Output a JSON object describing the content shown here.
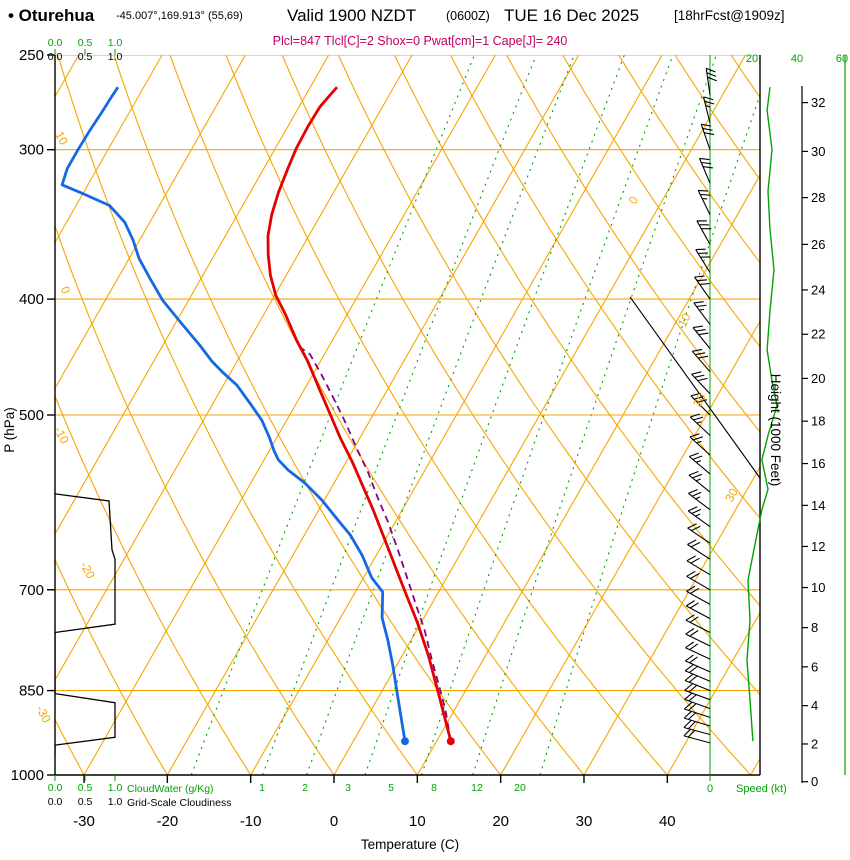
{
  "header": {
    "station_title": "• Oturehua",
    "coords": "-45.007°,169.913° (55,69)",
    "valid_time": "Valid 1900 NZDT",
    "valid_z": "(0600Z)",
    "valid_date": "TUE 16 Dec 2025",
    "forecast_ref": "[18hrFcst@1909z]",
    "indices": "Plcl=847 Tlcl[C]=2 Shox=0 Pwat[cm]=1 Cape[J]= 240"
  },
  "axes": {
    "pressure_title": "P (hPa)",
    "pressure_ticks": [
      "250",
      "300",
      "400",
      "500",
      "700",
      "850",
      "1000"
    ],
    "temperature_title": "Temperature (C)",
    "temperature_ticks": [
      "-30",
      "-20",
      "-10",
      "0",
      "10",
      "20",
      "30",
      "40"
    ],
    "height_title": "Height (1000 Feet)",
    "height_ticks": [
      "0",
      "2",
      "4",
      "6",
      "8",
      "10",
      "12",
      "14",
      "16",
      "18",
      "20",
      "22",
      "24",
      "26",
      "28",
      "30",
      "32"
    ],
    "speed_title": "Speed (kt)",
    "speed_zero_label": "0",
    "speed_top_ticks": [
      "20",
      "40",
      "60"
    ],
    "cloudwater_title": "CloudWater (g/Kg)",
    "cloudiness_title": "Grid-Scale Cloudiness",
    "cloud_scale_ticks": [
      "0.0",
      "0.5",
      "1.0"
    ],
    "dry_adiabat_labels": [
      "10",
      "0",
      "-10",
      "-20",
      "-30"
    ],
    "isotherm_labels": [
      "0",
      "10",
      "20",
      "30"
    ],
    "mixing_ratio_labels": [
      "1",
      "2",
      "3",
      "5",
      "8",
      "12",
      "20"
    ]
  },
  "colors": {
    "grid_orange": "#f7a600",
    "green": "#00a300",
    "temperature_red": "#e60000",
    "dewpoint_blue": "#1569e0",
    "parcel_purple": "#880088",
    "indices_magenta": "#c00060",
    "black": "#000000"
  },
  "chart_data": {
    "type": "line",
    "subtype": "skew-t log-p atmospheric sounding",
    "pressure_range_hpa": [
      1000,
      250
    ],
    "pressure_gridlines_hpa": [
      250,
      300,
      400,
      500,
      700,
      850,
      1000
    ],
    "isotherm_step_c": 10,
    "dry_adiabat_step_c": 10,
    "mixing_ratio_lines_gkg": [
      1,
      2,
      3,
      5,
      8,
      12,
      20
    ],
    "height_axis_kft_ticks": [
      0,
      2,
      4,
      6,
      8,
      10,
      12,
      14,
      16,
      18,
      20,
      22,
      24,
      26,
      28,
      30,
      32
    ],
    "speed_axis_kt": [
      0,
      60
    ],
    "series": {
      "temperature_c": [
        [
          937,
          11.7
        ],
        [
          891,
          9.1
        ],
        [
          849,
          6.6
        ],
        [
          794,
          3.1
        ],
        [
          745,
          -0.5
        ],
        [
          703,
          -4.0
        ],
        [
          671,
          -6.8
        ],
        [
          636,
          -10.0
        ],
        [
          600,
          -13.5
        ],
        [
          572,
          -16.5
        ],
        [
          547,
          -19.3
        ],
        [
          523,
          -22.3
        ],
        [
          500,
          -25.1
        ],
        [
          475,
          -28.3
        ],
        [
          451,
          -31.5
        ],
        [
          433,
          -34.3
        ],
        [
          412,
          -37.4
        ],
        [
          397,
          -39.9
        ],
        [
          382,
          -41.9
        ],
        [
          367,
          -43.6
        ],
        [
          354,
          -44.9
        ],
        [
          340,
          -45.9
        ],
        [
          326,
          -46.6
        ],
        [
          312,
          -47.1
        ],
        [
          299,
          -47.5
        ],
        [
          287,
          -47.6
        ],
        [
          276,
          -47.5
        ],
        [
          270,
          -47.1
        ],
        [
          266,
          -46.8
        ]
      ],
      "dewpoint_c": [
        [
          937,
          6.2
        ],
        [
          891,
          3.9
        ],
        [
          849,
          1.7
        ],
        [
          809,
          -0.5
        ],
        [
          771,
          -2.8
        ],
        [
          739,
          -5.0
        ],
        [
          703,
          -6.7
        ],
        [
          684,
          -9.0
        ],
        [
          655,
          -11.7
        ],
        [
          630,
          -14.5
        ],
        [
          610,
          -17.3
        ],
        [
          589,
          -20.3
        ],
        [
          570,
          -23.5
        ],
        [
          556,
          -26.4
        ],
        [
          545,
          -28.3
        ],
        [
          535,
          -29.5
        ],
        [
          522,
          -30.9
        ],
        [
          505,
          -33.0
        ],
        [
          488,
          -35.7
        ],
        [
          472,
          -38.4
        ],
        [
          460,
          -41.1
        ],
        [
          451,
          -43.0
        ],
        [
          437,
          -45.6
        ],
        [
          420,
          -49.1
        ],
        [
          401,
          -53.1
        ],
        [
          384,
          -56.2
        ],
        [
          370,
          -58.8
        ],
        [
          357,
          -60.8
        ],
        [
          345,
          -63.0
        ],
        [
          334,
          -66.0
        ],
        [
          327,
          -69.7
        ],
        [
          321,
          -73.1
        ],
        [
          311,
          -73.6
        ],
        [
          300,
          -73.6
        ],
        [
          289,
          -73.5
        ],
        [
          279,
          -73.3
        ],
        [
          271,
          -73.2
        ],
        [
          266,
          -73.1
        ]
      ],
      "parcel_path_c": [
        [
          937,
          11.7
        ],
        [
          882,
          8.9
        ],
        [
          847,
          6.8
        ],
        [
          802,
          3.9
        ],
        [
          756,
          0.9
        ],
        [
          721,
          -1.8
        ],
        [
          687,
          -4.5
        ],
        [
          648,
          -7.8
        ],
        [
          614,
          -10.9
        ],
        [
          586,
          -13.8
        ],
        [
          559,
          -16.6
        ],
        [
          533,
          -19.7
        ],
        [
          508,
          -22.7
        ],
        [
          484,
          -25.9
        ],
        [
          463,
          -28.9
        ],
        [
          445,
          -31.7
        ],
        [
          437,
          -33.9
        ]
      ],
      "wind_speed_kt": [
        [
          937,
          20.4
        ],
        [
          865,
          19.1
        ],
        [
          802,
          17.8
        ],
        [
          742,
          19.1
        ],
        [
          687,
          18.2
        ],
        [
          642,
          21.3
        ],
        [
          600,
          24.4
        ],
        [
          577,
          27.1
        ],
        [
          545,
          24.4
        ],
        [
          520,
          27.1
        ],
        [
          491,
          31.1
        ],
        [
          468,
          28.9
        ],
        [
          441,
          26.7
        ],
        [
          409,
          28.0
        ],
        [
          378,
          29.8
        ],
        [
          350,
          28.0
        ],
        [
          325,
          27.1
        ],
        [
          300,
          28.9
        ],
        [
          278,
          26.7
        ],
        [
          266,
          28.0
        ]
      ],
      "grid_scale_cloudiness_fraction": [
        [
          960,
          0.0
        ],
        [
          944,
          0.0
        ],
        [
          930,
          1.0
        ],
        [
          870,
          1.0
        ],
        [
          855,
          0.0
        ],
        [
          760,
          0.0
        ],
        [
          748,
          1.0
        ],
        [
          660,
          1.0
        ],
        [
          648,
          0.95
        ],
        [
          590,
          0.9
        ],
        [
          582,
          0.0
        ]
      ]
    },
    "surface_points": {
      "temperature": [
        937,
        11.7
      ],
      "dewpoint": [
        937,
        6.2
      ]
    },
    "wind_barbs_p_dir_kt": [
      [
        940,
        285,
        20
      ],
      [
        925,
        285,
        20
      ],
      [
        910,
        287,
        19
      ],
      [
        895,
        288,
        19
      ],
      [
        880,
        290,
        18
      ],
      [
        865,
        290,
        18
      ],
      [
        850,
        292,
        18
      ],
      [
        835,
        293,
        18
      ],
      [
        820,
        294,
        18
      ],
      [
        800,
        295,
        18
      ],
      [
        780,
        296,
        18
      ],
      [
        760,
        297,
        18
      ],
      [
        740,
        298,
        19
      ],
      [
        720,
        299,
        19
      ],
      [
        700,
        300,
        18
      ],
      [
        680,
        301,
        18
      ],
      [
        660,
        303,
        20
      ],
      [
        640,
        304,
        21
      ],
      [
        620,
        306,
        23
      ],
      [
        600,
        307,
        24
      ],
      [
        580,
        309,
        26
      ],
      [
        560,
        310,
        25
      ],
      [
        540,
        312,
        24
      ],
      [
        520,
        313,
        26
      ],
      [
        500,
        315,
        28
      ],
      [
        480,
        317,
        30
      ],
      [
        460,
        319,
        29
      ],
      [
        440,
        321,
        28
      ],
      [
        420,
        323,
        27
      ],
      [
        400,
        325,
        29
      ],
      [
        380,
        328,
        30
      ],
      [
        360,
        331,
        28
      ],
      [
        340,
        334,
        27
      ],
      [
        320,
        337,
        28
      ],
      [
        300,
        341,
        29
      ],
      [
        285,
        346,
        27
      ],
      [
        270,
        352,
        28
      ]
    ]
  }
}
